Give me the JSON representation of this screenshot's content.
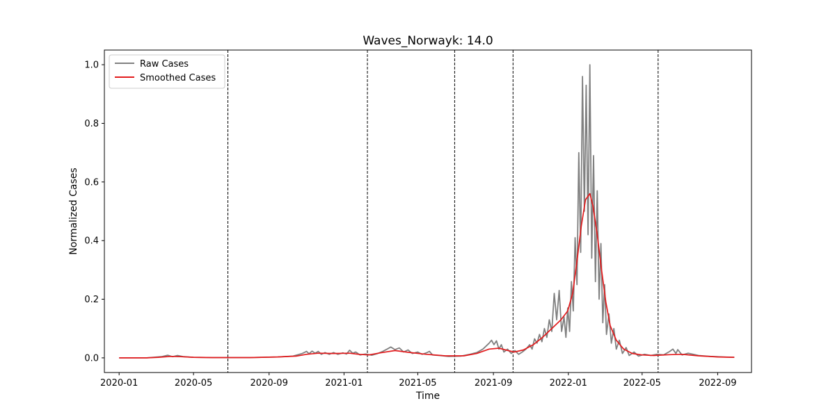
{
  "chart_data": {
    "type": "line",
    "title": "Waves_Norwayk: 14.0",
    "xlabel": "Time",
    "ylabel": "Normalized Cases",
    "xlim": [
      "2019-12-08",
      "2022-10-26"
    ],
    "ylim": [
      -0.05,
      1.05
    ],
    "x_ticks": [
      "2020-01",
      "2020-05",
      "2020-09",
      "2021-01",
      "2021-05",
      "2021-09",
      "2022-01",
      "2022-05",
      "2022-09"
    ],
    "y_ticks": [
      "0.0",
      "0.2",
      "0.4",
      "0.6",
      "0.8",
      "1.0"
    ],
    "grid": false,
    "legend_position": "upper-left",
    "wave_boundaries": [
      "2020-06-26",
      "2021-02-08",
      "2021-06-30",
      "2021-10-03",
      "2022-05-27"
    ],
    "series": [
      {
        "name": "Raw Cases",
        "color": "#808080",
        "points": [
          [
            "2020-01-01",
            0.0
          ],
          [
            "2020-02-15",
            0.0
          ],
          [
            "2020-03-10",
            0.004
          ],
          [
            "2020-03-20",
            0.009
          ],
          [
            "2020-03-28",
            0.004
          ],
          [
            "2020-04-05",
            0.008
          ],
          [
            "2020-04-15",
            0.004
          ],
          [
            "2020-05-01",
            0.002
          ],
          [
            "2020-06-01",
            0.001
          ],
          [
            "2020-08-01",
            0.001
          ],
          [
            "2020-09-15",
            0.003
          ],
          [
            "2020-10-10",
            0.006
          ],
          [
            "2020-10-25",
            0.015
          ],
          [
            "2020-11-01",
            0.022
          ],
          [
            "2020-11-05",
            0.014
          ],
          [
            "2020-11-10",
            0.023
          ],
          [
            "2020-11-15",
            0.016
          ],
          [
            "2020-11-20",
            0.022
          ],
          [
            "2020-11-25",
            0.012
          ],
          [
            "2020-12-01",
            0.018
          ],
          [
            "2020-12-08",
            0.012
          ],
          [
            "2020-12-15",
            0.018
          ],
          [
            "2020-12-22",
            0.012
          ],
          [
            "2020-12-30",
            0.017
          ],
          [
            "2021-01-05",
            0.013
          ],
          [
            "2021-01-10",
            0.026
          ],
          [
            "2021-01-15",
            0.016
          ],
          [
            "2021-01-20",
            0.02
          ],
          [
            "2021-01-27",
            0.01
          ],
          [
            "2021-02-05",
            0.013
          ],
          [
            "2021-02-15",
            0.009
          ],
          [
            "2021-02-25",
            0.015
          ],
          [
            "2021-03-05",
            0.022
          ],
          [
            "2021-03-12",
            0.03
          ],
          [
            "2021-03-18",
            0.037
          ],
          [
            "2021-03-25",
            0.028
          ],
          [
            "2021-04-01",
            0.034
          ],
          [
            "2021-04-08",
            0.02
          ],
          [
            "2021-04-15",
            0.027
          ],
          [
            "2021-04-22",
            0.015
          ],
          [
            "2021-05-01",
            0.02
          ],
          [
            "2021-05-08",
            0.012
          ],
          [
            "2021-05-15",
            0.017
          ],
          [
            "2021-05-20",
            0.022
          ],
          [
            "2021-05-25",
            0.01
          ],
          [
            "2021-06-05",
            0.008
          ],
          [
            "2021-06-20",
            0.005
          ],
          [
            "2021-07-10",
            0.006
          ],
          [
            "2021-07-25",
            0.012
          ],
          [
            "2021-08-05",
            0.018
          ],
          [
            "2021-08-15",
            0.03
          ],
          [
            "2021-08-25",
            0.05
          ],
          [
            "2021-08-29",
            0.06
          ],
          [
            "2021-09-02",
            0.045
          ],
          [
            "2021-09-06",
            0.058
          ],
          [
            "2021-09-10",
            0.03
          ],
          [
            "2021-09-14",
            0.045
          ],
          [
            "2021-09-18",
            0.02
          ],
          [
            "2021-09-24",
            0.03
          ],
          [
            "2021-09-30",
            0.015
          ],
          [
            "2021-10-06",
            0.025
          ],
          [
            "2021-10-12",
            0.012
          ],
          [
            "2021-10-18",
            0.02
          ],
          [
            "2021-10-24",
            0.03
          ],
          [
            "2021-10-30",
            0.045
          ],
          [
            "2021-11-03",
            0.03
          ],
          [
            "2021-11-07",
            0.065
          ],
          [
            "2021-11-11",
            0.05
          ],
          [
            "2021-11-15",
            0.08
          ],
          [
            "2021-11-19",
            0.055
          ],
          [
            "2021-11-23",
            0.1
          ],
          [
            "2021-11-27",
            0.07
          ],
          [
            "2021-12-01",
            0.13
          ],
          [
            "2021-12-05",
            0.09
          ],
          [
            "2021-12-09",
            0.22
          ],
          [
            "2021-12-13",
            0.13
          ],
          [
            "2021-12-17",
            0.23
          ],
          [
            "2021-12-21",
            0.09
          ],
          [
            "2021-12-25",
            0.14
          ],
          [
            "2021-12-28",
            0.07
          ],
          [
            "2021-12-31",
            0.17
          ],
          [
            "2022-01-03",
            0.09
          ],
          [
            "2022-01-06",
            0.26
          ],
          [
            "2022-01-09",
            0.16
          ],
          [
            "2022-01-12",
            0.41
          ],
          [
            "2022-01-15",
            0.25
          ],
          [
            "2022-01-18",
            0.7
          ],
          [
            "2022-01-21",
            0.36
          ],
          [
            "2022-01-24",
            0.96
          ],
          [
            "2022-01-27",
            0.5
          ],
          [
            "2022-01-30",
            0.93
          ],
          [
            "2022-02-02",
            0.42
          ],
          [
            "2022-02-05",
            1.0
          ],
          [
            "2022-02-08",
            0.34
          ],
          [
            "2022-02-11",
            0.69
          ],
          [
            "2022-02-14",
            0.26
          ],
          [
            "2022-02-17",
            0.57
          ],
          [
            "2022-02-20",
            0.2
          ],
          [
            "2022-02-23",
            0.39
          ],
          [
            "2022-02-26",
            0.12
          ],
          [
            "2022-03-01",
            0.25
          ],
          [
            "2022-03-04",
            0.08
          ],
          [
            "2022-03-08",
            0.15
          ],
          [
            "2022-03-12",
            0.05
          ],
          [
            "2022-03-16",
            0.1
          ],
          [
            "2022-03-20",
            0.03
          ],
          [
            "2022-03-25",
            0.06
          ],
          [
            "2022-03-30",
            0.015
          ],
          [
            "2022-04-05",
            0.035
          ],
          [
            "2022-04-10",
            0.008
          ],
          [
            "2022-04-18",
            0.02
          ],
          [
            "2022-04-25",
            0.006
          ],
          [
            "2022-05-05",
            0.012
          ],
          [
            "2022-05-15",
            0.008
          ],
          [
            "2022-05-25",
            0.012
          ],
          [
            "2022-06-05",
            0.01
          ],
          [
            "2022-06-15",
            0.022
          ],
          [
            "2022-06-20",
            0.03
          ],
          [
            "2022-06-25",
            0.015
          ],
          [
            "2022-06-28",
            0.028
          ],
          [
            "2022-07-05",
            0.01
          ],
          [
            "2022-07-15",
            0.016
          ],
          [
            "2022-08-01",
            0.008
          ],
          [
            "2022-08-20",
            0.005
          ],
          [
            "2022-09-10",
            0.003
          ],
          [
            "2022-09-28",
            0.002
          ]
        ]
      },
      {
        "name": "Smoothed Cases",
        "color": "#e31a1c",
        "points": [
          [
            "2020-01-01",
            0.0
          ],
          [
            "2020-02-15",
            0.0
          ],
          [
            "2020-03-05",
            0.002
          ],
          [
            "2020-03-25",
            0.005
          ],
          [
            "2020-04-10",
            0.004
          ],
          [
            "2020-05-01",
            0.002
          ],
          [
            "2020-06-01",
            0.001
          ],
          [
            "2020-08-01",
            0.001
          ],
          [
            "2020-09-15",
            0.003
          ],
          [
            "2020-10-15",
            0.006
          ],
          [
            "2020-11-01",
            0.012
          ],
          [
            "2020-11-20",
            0.016
          ],
          [
            "2020-12-15",
            0.015
          ],
          [
            "2021-01-10",
            0.016
          ],
          [
            "2021-01-25",
            0.012
          ],
          [
            "2021-02-10",
            0.01
          ],
          [
            "2021-03-01",
            0.017
          ],
          [
            "2021-03-25",
            0.025
          ],
          [
            "2021-04-15",
            0.019
          ],
          [
            "2021-05-15",
            0.012
          ],
          [
            "2021-06-15",
            0.007
          ],
          [
            "2021-07-15",
            0.007
          ],
          [
            "2021-08-05",
            0.015
          ],
          [
            "2021-08-25",
            0.03
          ],
          [
            "2021-09-10",
            0.033
          ],
          [
            "2021-09-25",
            0.025
          ],
          [
            "2021-10-05",
            0.02
          ],
          [
            "2021-10-20",
            0.027
          ],
          [
            "2021-11-05",
            0.045
          ],
          [
            "2021-11-20",
            0.07
          ],
          [
            "2021-12-05",
            0.1
          ],
          [
            "2021-12-20",
            0.13
          ],
          [
            "2021-12-31",
            0.16
          ],
          [
            "2022-01-08",
            0.22
          ],
          [
            "2022-01-15",
            0.33
          ],
          [
            "2022-01-22",
            0.45
          ],
          [
            "2022-01-29",
            0.54
          ],
          [
            "2022-02-05",
            0.56
          ],
          [
            "2022-02-10",
            0.52
          ],
          [
            "2022-02-17",
            0.42
          ],
          [
            "2022-02-24",
            0.3
          ],
          [
            "2022-03-03",
            0.19
          ],
          [
            "2022-03-10",
            0.11
          ],
          [
            "2022-03-20",
            0.06
          ],
          [
            "2022-04-01",
            0.03
          ],
          [
            "2022-04-15",
            0.015
          ],
          [
            "2022-05-01",
            0.01
          ],
          [
            "2022-05-20",
            0.008
          ],
          [
            "2022-06-15",
            0.011
          ],
          [
            "2022-07-05",
            0.012
          ],
          [
            "2022-08-01",
            0.007
          ],
          [
            "2022-09-01",
            0.003
          ],
          [
            "2022-09-28",
            0.002
          ]
        ]
      }
    ]
  }
}
